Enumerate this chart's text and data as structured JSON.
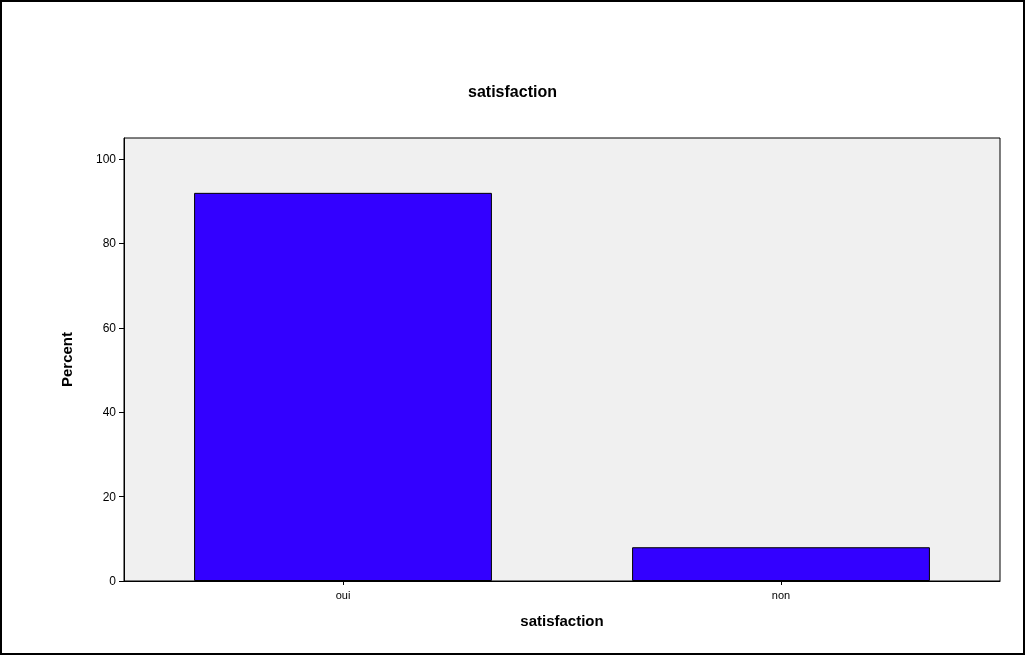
{
  "chart_data": {
    "type": "bar",
    "title": "satisfaction",
    "xlabel": "satisfaction",
    "ylabel": "Percent",
    "categories": [
      "oui",
      "non"
    ],
    "values": [
      92,
      8
    ],
    "color": "#3300ff",
    "ylim": [
      0,
      105
    ],
    "yticks": [
      0,
      20,
      40,
      60,
      80,
      100
    ],
    "grid": false
  }
}
